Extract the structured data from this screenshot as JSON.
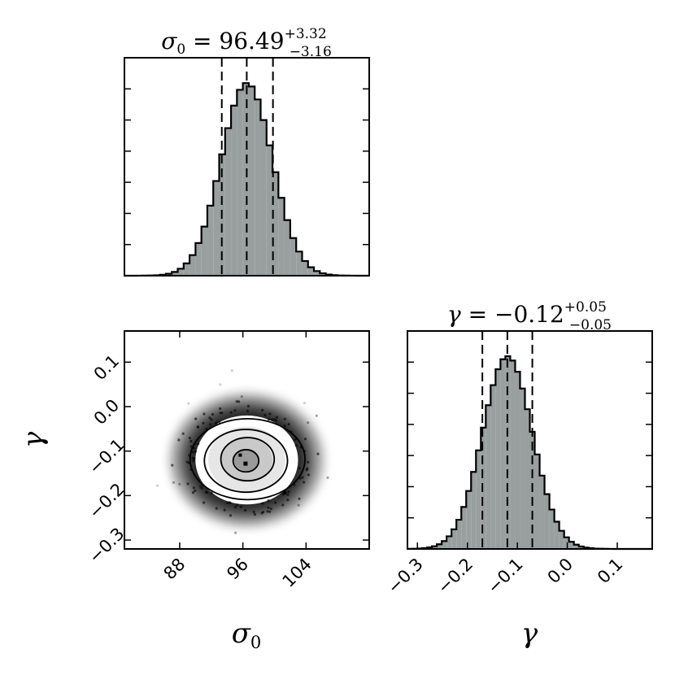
{
  "chart_data": [
    {
      "type": "histogram",
      "panel": "sigma0-marginal",
      "title": {
        "symbol": "σ",
        "subscript": "0",
        "equals": " = ",
        "value": "96.49",
        "plus": "+3.32",
        "minus": "−3.16"
      },
      "xlim": [
        81,
        112
      ],
      "quantiles": [
        93.33,
        96.49,
        99.81
      ],
      "distribution": {
        "mean": 96.5,
        "sd": 3.25,
        "bin_width": 0.75,
        "peak_count": 1.0
      },
      "color": "#999f9f",
      "y_tick_count": 7
    },
    {
      "type": "histogram",
      "panel": "gamma-marginal",
      "title": {
        "symbol": "γ",
        "equals": " = ",
        "value": "−0.12",
        "plus": "+0.05",
        "minus": "−0.05"
      },
      "xlim": [
        -0.32,
        0.17
      ],
      "xticks": [
        -0.3,
        -0.2,
        -0.1,
        0.0,
        0.1
      ],
      "xticklabels": [
        "−0.3",
        "−0.2",
        "−0.1",
        "0.0",
        "0.1"
      ],
      "xlabel": "γ",
      "quantiles": [
        -0.17,
        -0.12,
        -0.07
      ],
      "distribution": {
        "mean": -0.12,
        "sd": 0.05,
        "bin_width": 0.0098,
        "peak_count": 1.0
      },
      "color": "#999f9f",
      "y_tick_count": 7
    },
    {
      "type": "scatter",
      "panel": "joint-sigma0-gamma",
      "xlim": [
        81,
        112
      ],
      "ylim": [
        -0.32,
        0.17
      ],
      "xticks": [
        88,
        96,
        104
      ],
      "xticklabels": [
        "88",
        "96",
        "104"
      ],
      "yticks": [
        0.1,
        0.0,
        -0.1,
        -0.2,
        -0.3
      ],
      "yticklabels": [
        "0.1",
        "0.0",
        "−0.1",
        "−0.2",
        "−0.3"
      ],
      "xlabel": "σ0",
      "ylabel": "γ",
      "center": [
        96.49,
        -0.12
      ],
      "sd": [
        3.25,
        0.05
      ],
      "contour_levels_sigma": [
        0.5,
        1.0,
        1.5,
        2.0
      ]
    }
  ],
  "labels": {
    "sigma0_symbol": "σ",
    "sigma0_subscript": "0",
    "gamma_symbol": "γ"
  }
}
